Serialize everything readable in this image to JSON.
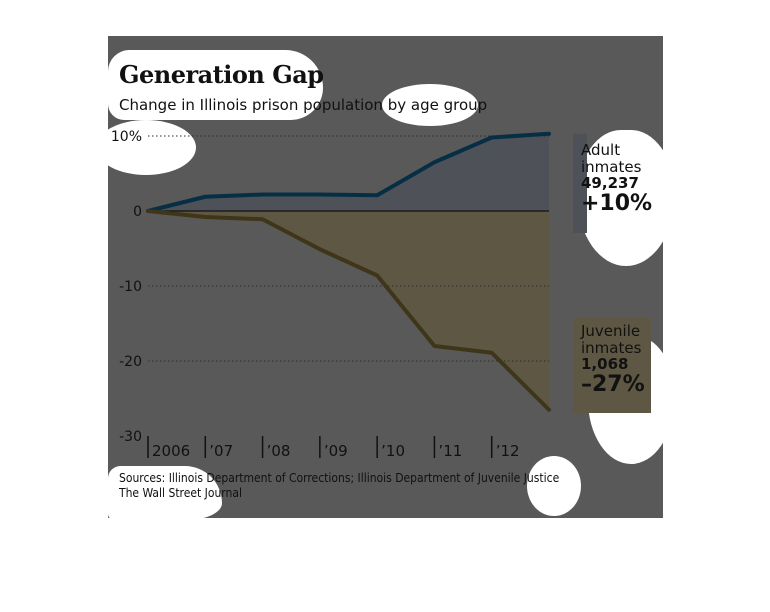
{
  "header": {
    "title": "Generation Gap",
    "subtitle": "Change in Illinois prison population by age group"
  },
  "labels": {
    "adult": {
      "name_line1": "Adult",
      "name_line2": "inmates",
      "count": "49,237",
      "pct": "+10%"
    },
    "juvenile": {
      "name_line1": "Juvenile",
      "name_line2": "inmates",
      "count": "1,068",
      "pct": "–27%"
    }
  },
  "footer": {
    "sources": "Sources: Illinois Department of Corrections; Illinois Department of Juvenile Justice",
    "publisher": "The Wall Street Journal"
  },
  "colors": {
    "panel": "#595959",
    "adult_line": "#062f45",
    "juvenile_line": "#3f3519",
    "adult_fill": "#4e5258",
    "juvenile_fill": "#5e5744",
    "gridline": "#2b2b2b"
  },
  "chart_data": {
    "type": "area",
    "title": "Generation Gap",
    "subtitle": "Change in Illinois prison population by age group",
    "x": [
      2006,
      2007,
      2008,
      2009,
      2010,
      2011,
      2012,
      2013
    ],
    "xtick_labels": [
      "2006",
      "’07",
      "’08",
      "’09",
      "’10",
      "’11",
      "’12"
    ],
    "yticks": [
      10,
      0,
      -10,
      -20,
      -30
    ],
    "ytick_labels": [
      "10%",
      "0",
      "-10",
      "-20",
      "-30"
    ],
    "ylim": [
      -30,
      10.5
    ],
    "grid": true,
    "series": [
      {
        "name": "Adult inmates",
        "values": [
          0,
          1.9,
          2.2,
          2.2,
          2.1,
          6.5,
          9.8,
          10.3
        ]
      },
      {
        "name": "Juvenile inmates",
        "values": [
          0,
          -0.8,
          -1.1,
          -5.1,
          -8.6,
          -18.0,
          -18.9,
          -26.5
        ]
      }
    ]
  }
}
